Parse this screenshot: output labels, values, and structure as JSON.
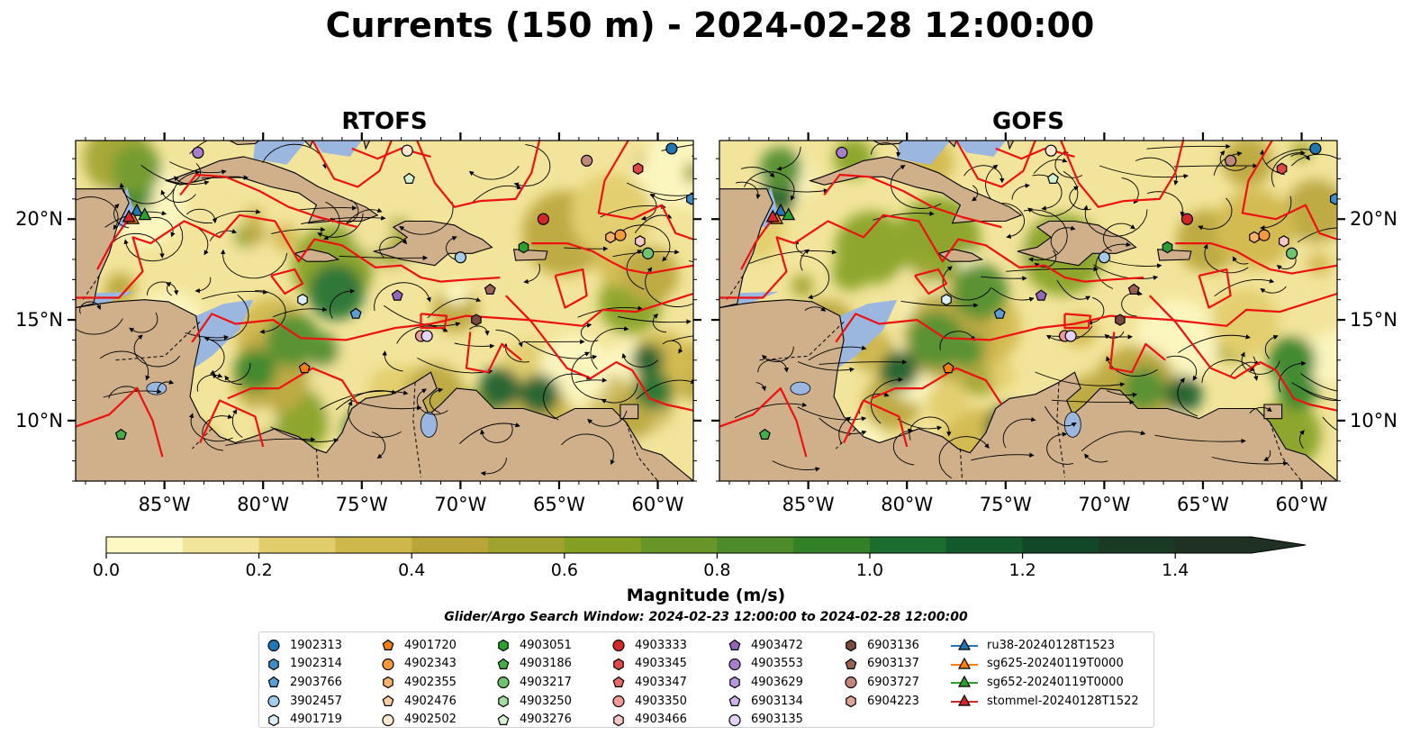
{
  "title": "Currents (150 m) - 2024-02-28 12:00:00",
  "panels": [
    {
      "title": "RTOFS",
      "ytick_side": "left"
    },
    {
      "title": "GOFS",
      "ytick_side": "right"
    }
  ],
  "map": {
    "lon_range": [
      -89.5,
      -58.2
    ],
    "lat_range": [
      7.0,
      23.9
    ],
    "lon_ticks": [
      "85°W",
      "80°W",
      "75°W",
      "70°W",
      "65°W",
      "60°W"
    ],
    "lon_tick_values": [
      -85,
      -80,
      -75,
      -70,
      -65,
      -60
    ],
    "lat_ticks": [
      "10°N",
      "15°N",
      "20°N"
    ],
    "lat_tick_values": [
      10,
      15,
      20
    ],
    "colors": {
      "land": "#cfb08a",
      "shallow_water": "#9bb7e0",
      "boundary_lines": "#ee1111",
      "streamlines": "#000000"
    }
  },
  "colorbar": {
    "label": "Magnitude (m/s)",
    "tick_labels": [
      "0.0",
      "0.2",
      "0.4",
      "0.6",
      "0.8",
      "1.0",
      "1.2",
      "1.4"
    ],
    "tick_values": [
      0.0,
      0.2,
      0.4,
      0.6,
      0.8,
      1.0,
      1.2,
      1.4
    ],
    "range": [
      0,
      1.5
    ],
    "extend": "max",
    "colors": [
      "#fdf7c3",
      "#f2e49a",
      "#e2cd6c",
      "#d0b74c",
      "#b9a53a",
      "#9fa22e",
      "#84a024",
      "#679528",
      "#4c8a2a",
      "#328126",
      "#1a6d2e",
      "#125a2c",
      "#13472a",
      "#1a3a26",
      "#1f3123"
    ]
  },
  "search_window": "Glider/Argo Search Window: 2024-02-23 12:00:00 to 2024-02-28 12:00:00",
  "legend": [
    [
      {
        "label": "1902313",
        "marker": "circle",
        "color": "#1f77b4"
      },
      {
        "label": "1902314",
        "marker": "hexagon",
        "color": "#3f8bc6"
      },
      {
        "label": "2903766",
        "marker": "pentagon",
        "color": "#5b9fd6"
      },
      {
        "label": "3902457",
        "marker": "circle",
        "color": "#a6cbea"
      },
      {
        "label": "4901719",
        "marker": "hexagon",
        "color": "#dcecf8"
      }
    ],
    [
      {
        "label": "4901720",
        "marker": "pentagon",
        "color": "#f07f12"
      },
      {
        "label": "4902343",
        "marker": "circle",
        "color": "#f59a3c"
      },
      {
        "label": "4902355",
        "marker": "hexagon",
        "color": "#f8b269"
      },
      {
        "label": "4902476",
        "marker": "pentagon",
        "color": "#fbcf9c"
      },
      {
        "label": "4902502",
        "marker": "circle",
        "color": "#fde9cf"
      }
    ],
    [
      {
        "label": "4903051",
        "marker": "hexagon",
        "color": "#2ca02c"
      },
      {
        "label": "4903186",
        "marker": "pentagon",
        "color": "#44ad44"
      },
      {
        "label": "4903217",
        "marker": "circle",
        "color": "#6fc26f"
      },
      {
        "label": "4903250",
        "marker": "hexagon",
        "color": "#a3dca3"
      },
      {
        "label": "4903276",
        "marker": "pentagon",
        "color": "#d4f2d0"
      }
    ],
    [
      {
        "label": "4903333",
        "marker": "circle",
        "color": "#d62728"
      },
      {
        "label": "4903345",
        "marker": "hexagon",
        "color": "#e04848"
      },
      {
        "label": "4903347",
        "marker": "pentagon",
        "color": "#e96a6a"
      },
      {
        "label": "4903350",
        "marker": "circle",
        "color": "#f19a9a"
      },
      {
        "label": "4903466",
        "marker": "hexagon",
        "color": "#f8c8c8"
      }
    ],
    [
      {
        "label": "4903472",
        "marker": "pentagon",
        "color": "#9467bd"
      },
      {
        "label": "4903553",
        "marker": "circle",
        "color": "#a57fcb"
      },
      {
        "label": "4903629",
        "marker": "hexagon",
        "color": "#b898dc"
      },
      {
        "label": "6903134",
        "marker": "pentagon",
        "color": "#ccb4ea"
      },
      {
        "label": "6903135",
        "marker": "circle",
        "color": "#e3d3f6"
      }
    ],
    [
      {
        "label": "6903136",
        "marker": "hexagon",
        "color": "#7a4a3c"
      },
      {
        "label": "6903137",
        "marker": "pentagon",
        "color": "#9a6252"
      },
      {
        "label": "6903727",
        "marker": "circle",
        "color": "#c1877a"
      },
      {
        "label": "6904223",
        "marker": "hexagon",
        "color": "#dca59c"
      }
    ],
    [
      {
        "label": "ru38-20240128T1523",
        "marker": "triangle-line",
        "color": "#1f77b4"
      },
      {
        "label": "sg625-20240119T0000",
        "marker": "triangle-line",
        "color": "#ff7f0e"
      },
      {
        "label": "sg652-20240119T0000",
        "marker": "triangle-line",
        "color": "#2ca02c"
      },
      {
        "label": "stommel-20240128T1522",
        "marker": "triangle-line",
        "color": "#d62728"
      }
    ]
  ],
  "floats": [
    {
      "id": "1902313",
      "lon": -59.3,
      "lat": 23.5
    },
    {
      "id": "1902314",
      "lon": -58.3,
      "lat": 21.0
    },
    {
      "id": "2903766",
      "lon": -75.3,
      "lat": 15.3
    },
    {
      "id": "3902457",
      "lon": -70.0,
      "lat": 18.1
    },
    {
      "id": "4901719",
      "lon": -78.0,
      "lat": 16.0
    },
    {
      "id": "4901720",
      "lon": -77.9,
      "lat": 12.6
    },
    {
      "id": "4902343",
      "lon": -61.9,
      "lat": 19.2
    },
    {
      "id": "4902355",
      "lon": -62.4,
      "lat": 19.1
    },
    {
      "id": "4902502",
      "lon": -72.7,
      "lat": 23.4
    },
    {
      "id": "4903051",
      "lon": -66.8,
      "lat": 18.6
    },
    {
      "id": "4903186",
      "lon": -87.2,
      "lat": 9.3
    },
    {
      "id": "4903217",
      "lon": -60.5,
      "lat": 18.3
    },
    {
      "id": "4903276",
      "lon": -72.6,
      "lat": 22.0
    },
    {
      "id": "4903333",
      "lon": -65.8,
      "lat": 20.0
    },
    {
      "id": "4903345",
      "lon": -61.0,
      "lat": 22.5
    },
    {
      "id": "4903350",
      "lon": -72.0,
      "lat": 14.2
    },
    {
      "id": "4903466",
      "lon": -60.9,
      "lat": 18.9
    },
    {
      "id": "4903472",
      "lon": -73.2,
      "lat": 16.2
    },
    {
      "id": "4903553",
      "lon": -83.3,
      "lat": 23.3
    },
    {
      "id": "6903135",
      "lon": -71.7,
      "lat": 14.2
    },
    {
      "id": "6903136",
      "lon": -69.2,
      "lat": 15.0
    },
    {
      "id": "6903137",
      "lon": -68.5,
      "lat": 16.5
    },
    {
      "id": "6903727",
      "lon": -63.6,
      "lat": 22.9
    }
  ],
  "gliders": [
    {
      "id": "ru38-20240128T1523",
      "lon": -86.4,
      "lat": 20.4
    },
    {
      "id": "sg625-20240119T0000",
      "lon": -86.6,
      "lat": 20.0
    },
    {
      "id": "sg652-20240119T0000",
      "lon": -86.0,
      "lat": 20.2
    },
    {
      "id": "stommel-20240128T1522",
      "lon": -86.8,
      "lat": 20.1
    }
  ]
}
